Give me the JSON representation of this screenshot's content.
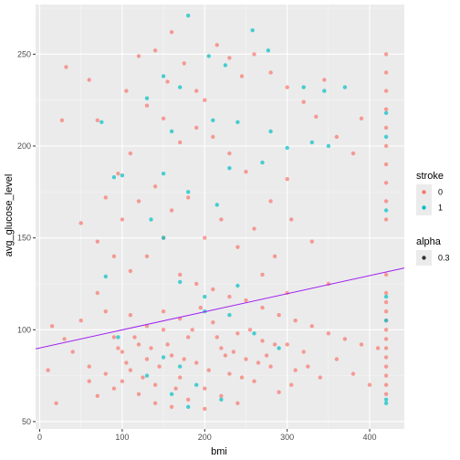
{
  "chart_data": {
    "type": "scatter",
    "xlabel": "bmi",
    "ylabel": "avg_glucose_level",
    "xlim": [
      -5,
      442
    ],
    "ylim": [
      46,
      277
    ],
    "x_ticks": [
      0,
      100,
      200,
      300,
      400
    ],
    "y_ticks": [
      50,
      100,
      150,
      200,
      250
    ],
    "grid": true,
    "background": "#EBEBEB",
    "legend": {
      "placement": "right",
      "color_title": "stroke",
      "color_entries": [
        {
          "label": "0",
          "color": "#F8766D"
        },
        {
          "label": "1",
          "color": "#00BFC4"
        }
      ],
      "alpha_title": "alpha",
      "alpha_entries": [
        {
          "label": "0.3"
        }
      ]
    },
    "trend_line": {
      "x": [
        -5,
        442
      ],
      "y": [
        89.6,
        133.6
      ],
      "color": "#A020F0"
    },
    "series": [
      {
        "name": "0",
        "color": "#F8766D",
        "points": [
          [
            60,
            236
          ],
          [
            27,
            214
          ],
          [
            32,
            243
          ],
          [
            105,
            230
          ],
          [
            70,
            214
          ],
          [
            120,
            249
          ],
          [
            140,
            252
          ],
          [
            155,
            235
          ],
          [
            160,
            262
          ],
          [
            175,
            245
          ],
          [
            190,
            230
          ],
          [
            200,
            225
          ],
          [
            215,
            255
          ],
          [
            230,
            248
          ],
          [
            245,
            238
          ],
          [
            260,
            250
          ],
          [
            280,
            240
          ],
          [
            300,
            232
          ],
          [
            320,
            224
          ],
          [
            335,
            216
          ],
          [
            345,
            236
          ],
          [
            360,
            205
          ],
          [
            390,
            215
          ],
          [
            380,
            196
          ],
          [
            300,
            182
          ],
          [
            280,
            170
          ],
          [
            250,
            186
          ],
          [
            230,
            196
          ],
          [
            210,
            205
          ],
          [
            190,
            210
          ],
          [
            170,
            202
          ],
          [
            150,
            215
          ],
          [
            130,
            222
          ],
          [
            110,
            196
          ],
          [
            95,
            185
          ],
          [
            100,
            160
          ],
          [
            120,
            170
          ],
          [
            140,
            178
          ],
          [
            160,
            165
          ],
          [
            180,
            172
          ],
          [
            200,
            150
          ],
          [
            220,
            160
          ],
          [
            240,
            145
          ],
          [
            260,
            155
          ],
          [
            285,
            140
          ],
          [
            305,
            160
          ],
          [
            330,
            148
          ],
          [
            350,
            125
          ],
          [
            300,
            120
          ],
          [
            270,
            130
          ],
          [
            80,
            172
          ],
          [
            50,
            158
          ],
          [
            70,
            148
          ],
          [
            90,
            140
          ],
          [
            110,
            132
          ],
          [
            130,
            140
          ],
          [
            150,
            150
          ],
          [
            170,
            130
          ],
          [
            190,
            125
          ],
          [
            210,
            122
          ],
          [
            230,
            118
          ],
          [
            250,
            116
          ],
          [
            270,
            112
          ],
          [
            290,
            108
          ],
          [
            310,
            105
          ],
          [
            330,
            102
          ],
          [
            350,
            98
          ],
          [
            370,
            95
          ],
          [
            390,
            92
          ],
          [
            410,
            90
          ],
          [
            30,
            95
          ],
          [
            40,
            88
          ],
          [
            50,
            105
          ],
          [
            60,
            80
          ],
          [
            70,
            120
          ],
          [
            80,
            110
          ],
          [
            90,
            96
          ],
          [
            100,
            88
          ],
          [
            110,
            78
          ],
          [
            120,
            92
          ],
          [
            130,
            84
          ],
          [
            140,
            70
          ],
          [
            150,
            100
          ],
          [
            160,
            86
          ],
          [
            170,
            74
          ],
          [
            180,
            96
          ],
          [
            190,
            82
          ],
          [
            200,
            68
          ],
          [
            210,
            104
          ],
          [
            220,
            90
          ],
          [
            230,
            76
          ],
          [
            240,
            98
          ],
          [
            250,
            84
          ],
          [
            260,
            72
          ],
          [
            270,
            94
          ],
          [
            280,
            80
          ],
          [
            290,
            66
          ],
          [
            300,
            92
          ],
          [
            310,
            78
          ],
          [
            320,
            88
          ],
          [
            340,
            74
          ],
          [
            360,
            84
          ],
          [
            380,
            76
          ],
          [
            400,
            70
          ],
          [
            120,
            65
          ],
          [
            140,
            60
          ],
          [
            160,
            58
          ],
          [
            180,
            62
          ],
          [
            200,
            57
          ],
          [
            220,
            64
          ],
          [
            240,
            60
          ],
          [
            100,
            72
          ],
          [
            90,
            68
          ],
          [
            80,
            76
          ],
          [
            70,
            64
          ],
          [
            60,
            72
          ],
          [
            150,
            110
          ],
          [
            170,
            106
          ],
          [
            130,
            102
          ],
          [
            110,
            108
          ],
          [
            195,
            112
          ],
          [
            215,
            96
          ],
          [
            235,
            88
          ],
          [
            255,
            100
          ],
          [
            275,
            86
          ],
          [
            95,
            90
          ],
          [
            105,
            82
          ],
          [
            115,
            96
          ],
          [
            125,
            74
          ],
          [
            135,
            90
          ],
          [
            145,
            80
          ],
          [
            155,
            92
          ],
          [
            165,
            68
          ],
          [
            175,
            84
          ],
          [
            185,
            100
          ],
          [
            205,
            78
          ],
          [
            225,
            86
          ],
          [
            245,
            74
          ],
          [
            265,
            82
          ],
          [
            285,
            92
          ],
          [
            305,
            70
          ],
          [
            325,
            80
          ],
          [
            20,
            60
          ],
          [
            10,
            78
          ],
          [
            15,
            102
          ],
          [
            420,
            250
          ],
          [
            420,
            240
          ],
          [
            420,
            230
          ],
          [
            420,
            220
          ],
          [
            420,
            210
          ],
          [
            420,
            200
          ],
          [
            420,
            190
          ],
          [
            420,
            180
          ],
          [
            420,
            170
          ],
          [
            420,
            160
          ],
          [
            420,
            130
          ],
          [
            420,
            120
          ],
          [
            420,
            115
          ],
          [
            420,
            110
          ],
          [
            420,
            105
          ],
          [
            420,
            100
          ],
          [
            420,
            95
          ],
          [
            420,
            90
          ],
          [
            420,
            85
          ],
          [
            420,
            80
          ],
          [
            420,
            75
          ],
          [
            420,
            70
          ],
          [
            420,
            65
          ]
        ]
      },
      {
        "name": "1",
        "color": "#00BFC4",
        "points": [
          [
            180,
            271
          ],
          [
            258,
            263
          ],
          [
            277,
            252
          ],
          [
            205,
            249
          ],
          [
            225,
            244
          ],
          [
            150,
            238
          ],
          [
            170,
            232
          ],
          [
            320,
            232
          ],
          [
            345,
            230
          ],
          [
            370,
            232
          ],
          [
            130,
            226
          ],
          [
            210,
            214
          ],
          [
            240,
            213
          ],
          [
            75,
            213
          ],
          [
            160,
            208
          ],
          [
            280,
            208
          ],
          [
            300,
            199
          ],
          [
            330,
            202
          ],
          [
            350,
            200
          ],
          [
            270,
            191
          ],
          [
            230,
            188
          ],
          [
            150,
            185
          ],
          [
            100,
            184
          ],
          [
            90,
            183
          ],
          [
            180,
            175
          ],
          [
            215,
            168
          ],
          [
            135,
            160
          ],
          [
            150,
            150
          ],
          [
            80,
            129
          ],
          [
            170,
            126
          ],
          [
            200,
            118
          ],
          [
            240,
            124
          ],
          [
            200,
            110
          ],
          [
            230,
            108
          ],
          [
            260,
            98
          ],
          [
            290,
            90
          ],
          [
            95,
            96
          ],
          [
            150,
            85
          ],
          [
            170,
            80
          ],
          [
            130,
            75
          ],
          [
            190,
            70
          ],
          [
            220,
            62
          ],
          [
            160,
            65
          ],
          [
            420,
            218
          ],
          [
            420,
            205
          ],
          [
            420,
            165
          ],
          [
            420,
            118
          ],
          [
            420,
            105
          ],
          [
            420,
            62
          ],
          [
            420,
            60
          ],
          [
            180,
            58
          ]
        ]
      }
    ]
  }
}
